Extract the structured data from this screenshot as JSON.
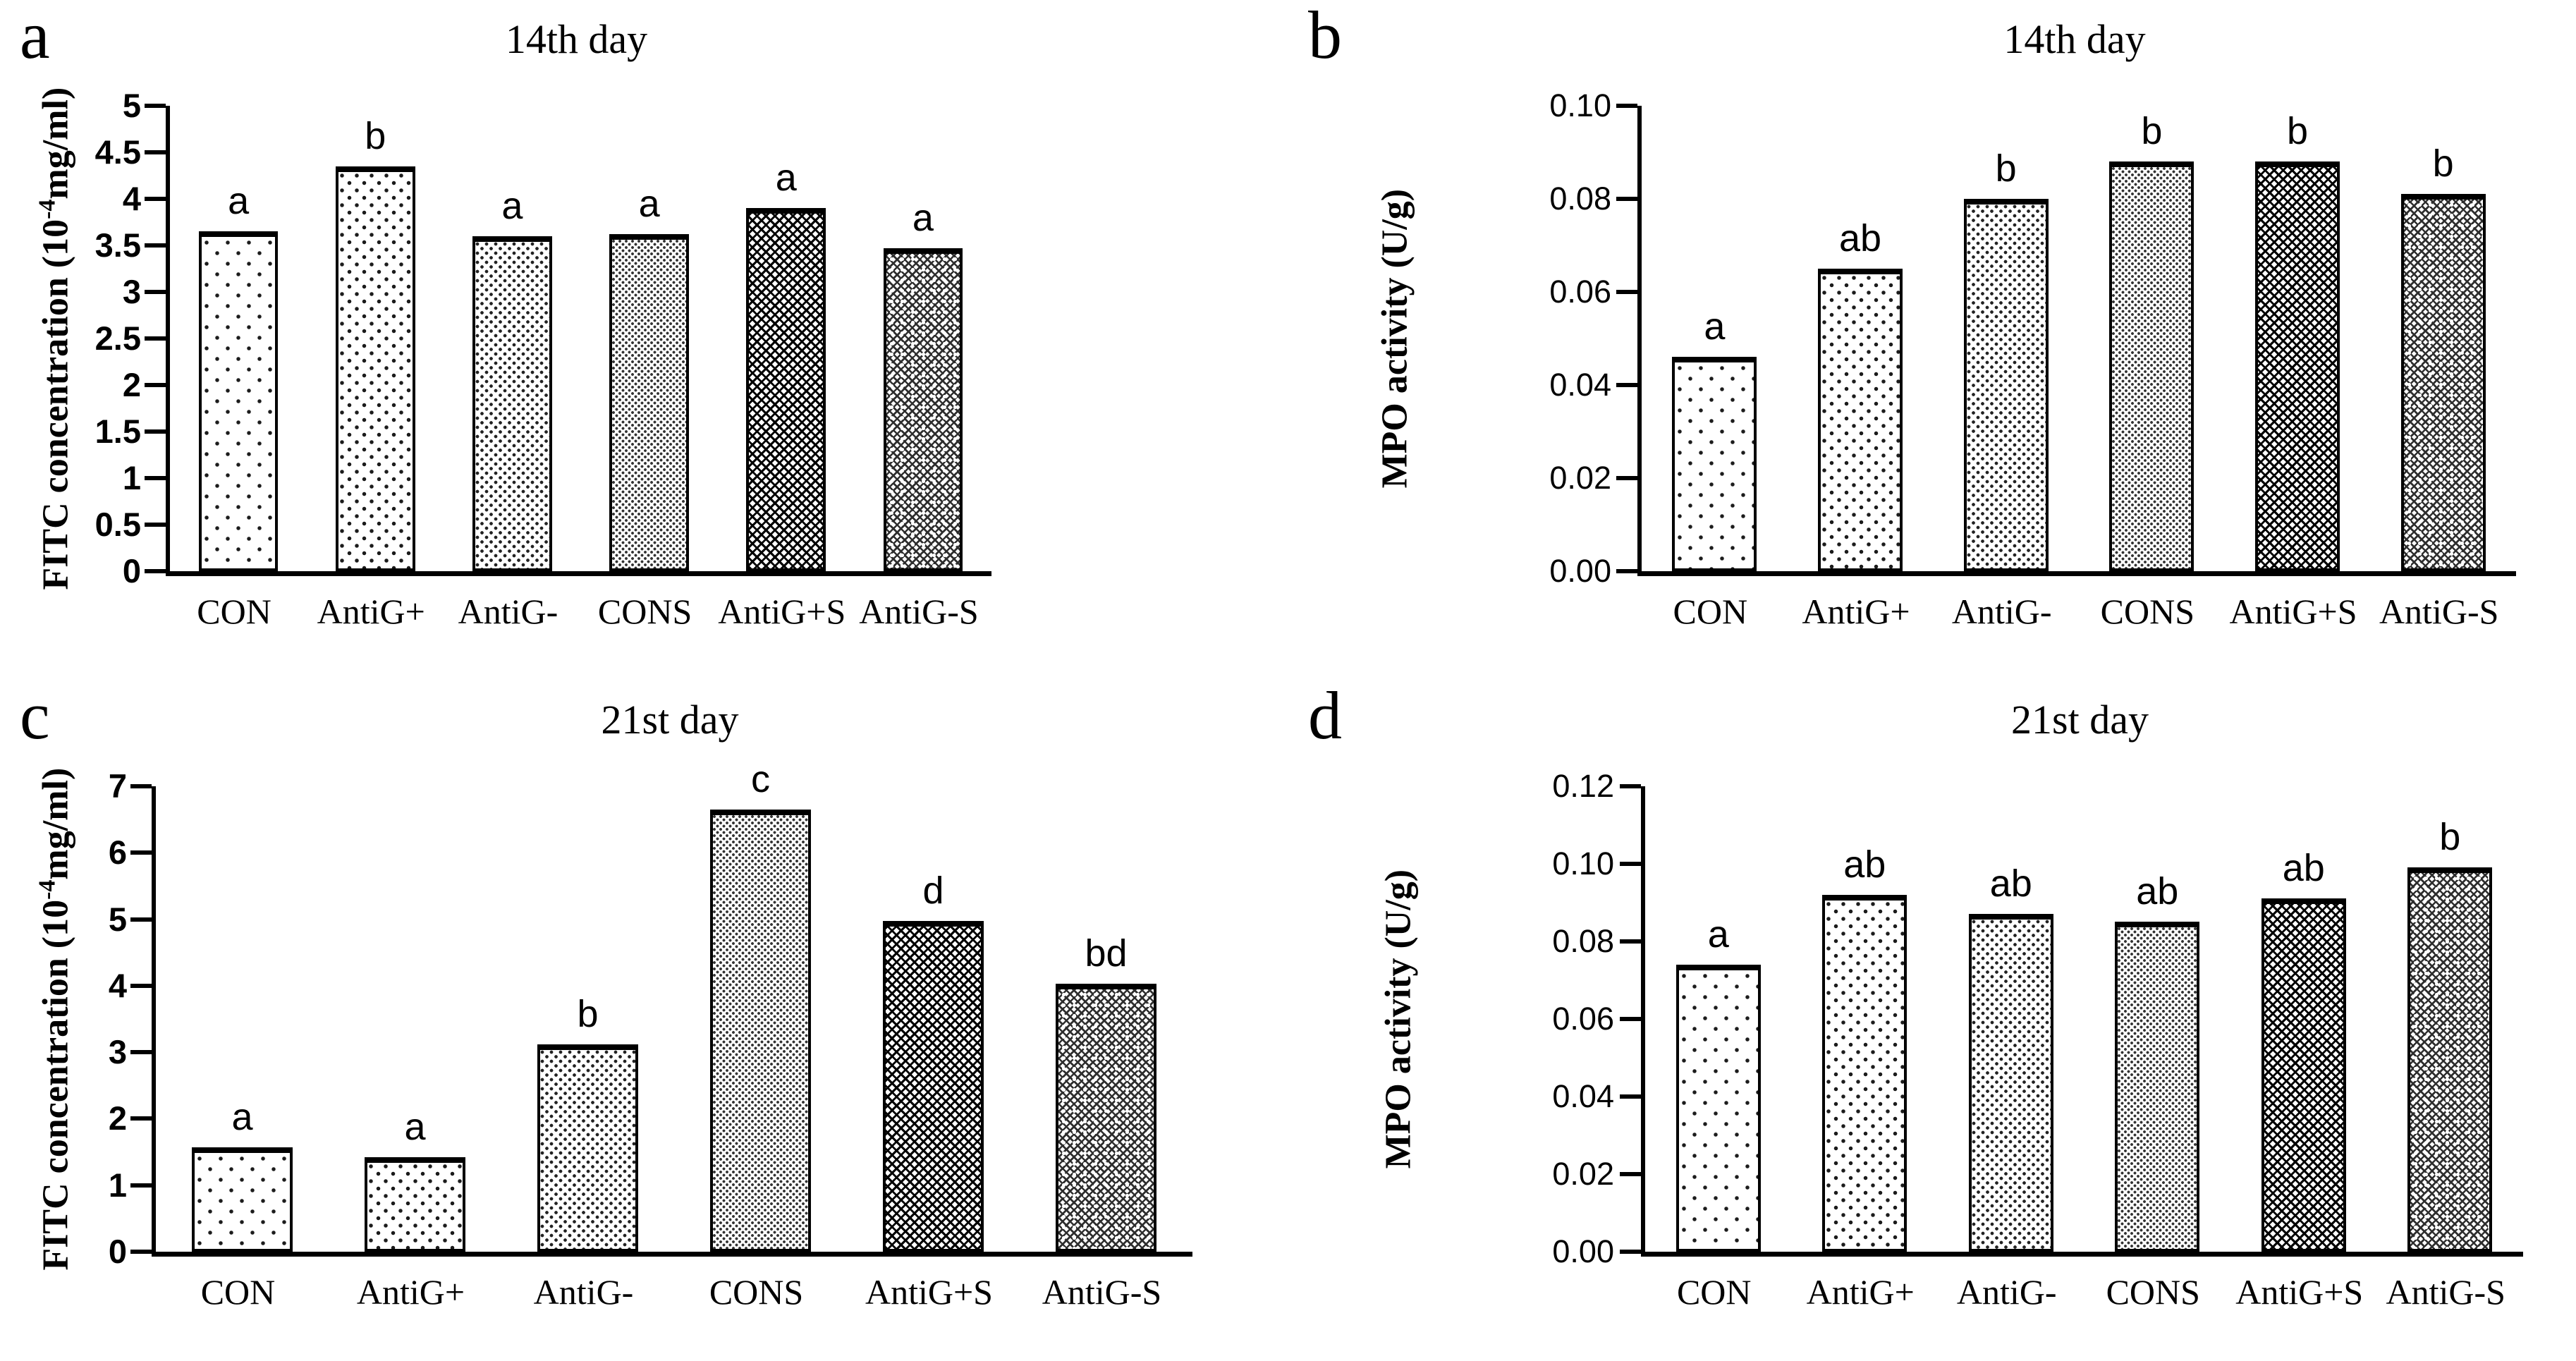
{
  "figure": {
    "background_color": "#ffffff",
    "text_color": "#000000",
    "categories": [
      "CON",
      "AntiG+",
      "AntiG-",
      "CONS",
      "AntiG+S",
      "AntiG-S"
    ],
    "bar_patterns": [
      "dots-5",
      "dots-10",
      "dots-20",
      "dots-25",
      "trellis",
      "trellis-dot"
    ]
  },
  "chart_data": [
    {
      "type": "bar",
      "panel_label": "a",
      "title": "14th day",
      "ylabel_pre": "FITC concentration (10",
      "ylabel_sup": "-4",
      "ylabel_post": "mg/ml)",
      "xlabel": "",
      "ylim": [
        0,
        5
      ],
      "ymax": 5,
      "yticks": [
        "5",
        "4.5",
        "4",
        "3.5",
        "3",
        "2.5",
        "2",
        "1.5",
        "1",
        "0.5",
        "0"
      ],
      "grid": "off",
      "legend": "none",
      "categories": [
        "CON",
        "AntiG+",
        "AntiG-",
        "CONS",
        "AntiG+S",
        "AntiG-S"
      ],
      "values": [
        3.65,
        4.35,
        3.6,
        3.62,
        3.9,
        3.47
      ],
      "sig": [
        "a",
        "b",
        "a",
        "a",
        "a",
        "a"
      ]
    },
    {
      "type": "bar",
      "panel_label": "b",
      "title": "14th day",
      "ylabel_pre": "MPO activity (U/g)",
      "ylabel_sup": "",
      "ylabel_post": "",
      "xlabel": "",
      "ylim": [
        0,
        0.1
      ],
      "ymax": 0.1,
      "yticks": [
        "0.10",
        "0.08",
        "0.06",
        "0.04",
        "0.02",
        "0.00"
      ],
      "grid": "off",
      "legend": "none",
      "categories": [
        "CON",
        "AntiG+",
        "AntiG-",
        "CONS",
        "AntiG+S",
        "AntiG-S"
      ],
      "values": [
        0.046,
        0.065,
        0.08,
        0.088,
        0.088,
        0.081
      ],
      "sig": [
        "a",
        "ab",
        "b",
        "b",
        "b",
        "b"
      ]
    },
    {
      "type": "bar",
      "panel_label": "c",
      "title": "21st day",
      "ylabel_pre": "FITC concentration (10",
      "ylabel_sup": "-4",
      "ylabel_post": "mg/ml)",
      "xlabel": "",
      "ylim": [
        0,
        7
      ],
      "ymax": 7,
      "yticks": [
        "7",
        "6",
        "5",
        "4",
        "3",
        "2",
        "1",
        "0"
      ],
      "grid": "off",
      "legend": "none",
      "categories": [
        "CON",
        "AntiG+",
        "AntiG-",
        "CONS",
        "AntiG+S",
        "AntiG-S"
      ],
      "values": [
        1.57,
        1.42,
        3.12,
        6.65,
        4.97,
        4.03
      ],
      "sig": [
        "a",
        "a",
        "b",
        "c",
        "d",
        "bd"
      ]
    },
    {
      "type": "bar",
      "panel_label": "d",
      "title": "21st day",
      "ylabel_pre": "MPO activity (U/g)",
      "ylabel_sup": "",
      "ylabel_post": "",
      "xlabel": "",
      "ylim": [
        0,
        0.12
      ],
      "ymax": 0.12,
      "yticks": [
        "0.12",
        "0.10",
        "0.08",
        "0.06",
        "0.04",
        "0.02",
        "0.00"
      ],
      "grid": "off",
      "legend": "none",
      "categories": [
        "CON",
        "AntiG+",
        "AntiG-",
        "CONS",
        "AntiG+S",
        "AntiG-S"
      ],
      "values": [
        0.074,
        0.092,
        0.087,
        0.085,
        0.091,
        0.099
      ],
      "sig": [
        "a",
        "ab",
        "ab",
        "ab",
        "ab",
        "b"
      ]
    }
  ]
}
